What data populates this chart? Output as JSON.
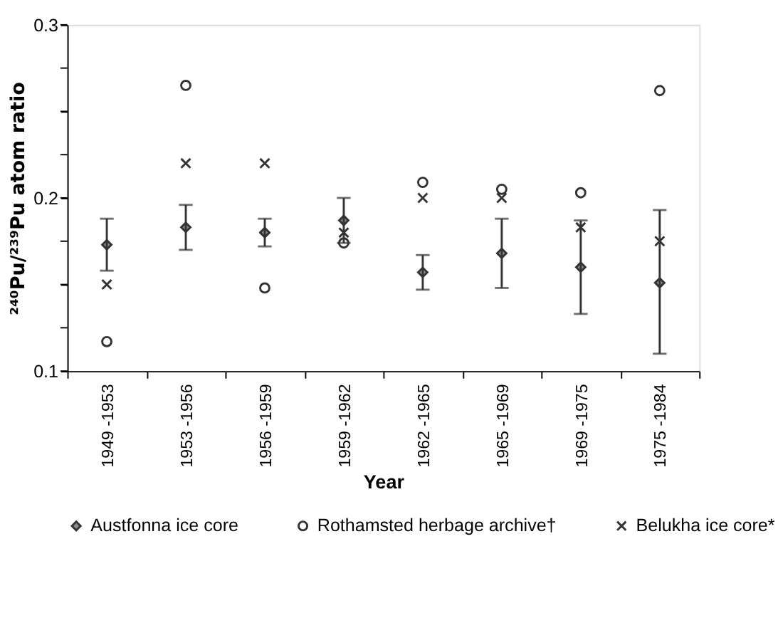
{
  "chart_data": {
    "type": "scatter",
    "xlabel": "Year",
    "ylabel": "²⁴⁰Pu/²³⁹Pu atom ratio",
    "categories": [
      "1949 -1953",
      "1953 -1956",
      "1956 -1959",
      "1959 -1962",
      "1962 -1965",
      "1965 -1969",
      "1969 -1975",
      "1975 -1984"
    ],
    "series": [
      {
        "name": "Austfonna ice core",
        "color": "#8c8c8c",
        "marker": "diamond",
        "values": [
          0.173,
          0.183,
          0.18,
          0.187,
          0.157,
          0.168,
          0.16,
          0.151
        ],
        "errors": [
          [
            0.158,
            0.188
          ],
          [
            0.17,
            0.196
          ],
          [
            0.172,
            0.188
          ],
          [
            0.174,
            0.2
          ],
          [
            0.147,
            0.167
          ],
          [
            0.148,
            0.188
          ],
          [
            0.133,
            0.187
          ],
          [
            0.11,
            0.193
          ]
        ]
      },
      {
        "name": "Rothamsted herbage archive†",
        "color": "#333333",
        "marker": "circle",
        "values": [
          0.117,
          0.265,
          0.148,
          0.174,
          0.209,
          0.205,
          0.203,
          0.262
        ]
      },
      {
        "name": "Belukha ice core*",
        "color": "#333333",
        "marker": "cross",
        "values": [
          0.15,
          0.22,
          0.22,
          0.18,
          0.2,
          0.2,
          0.183,
          0.175
        ]
      }
    ],
    "ylim": [
      0.1,
      0.3
    ],
    "yticks": [
      0.1,
      {
        "value": 0.125,
        "label": null
      },
      {
        "value": 0.15,
        "label": null
      },
      {
        "value": 0.175,
        "label": null
      },
      0.2,
      {
        "value": 0.225,
        "label": null
      },
      {
        "value": 0.25,
        "label": null
      },
      {
        "value": 0.275,
        "label": null
      },
      0.3
    ],
    "grid": false,
    "legend": "bottom"
  }
}
